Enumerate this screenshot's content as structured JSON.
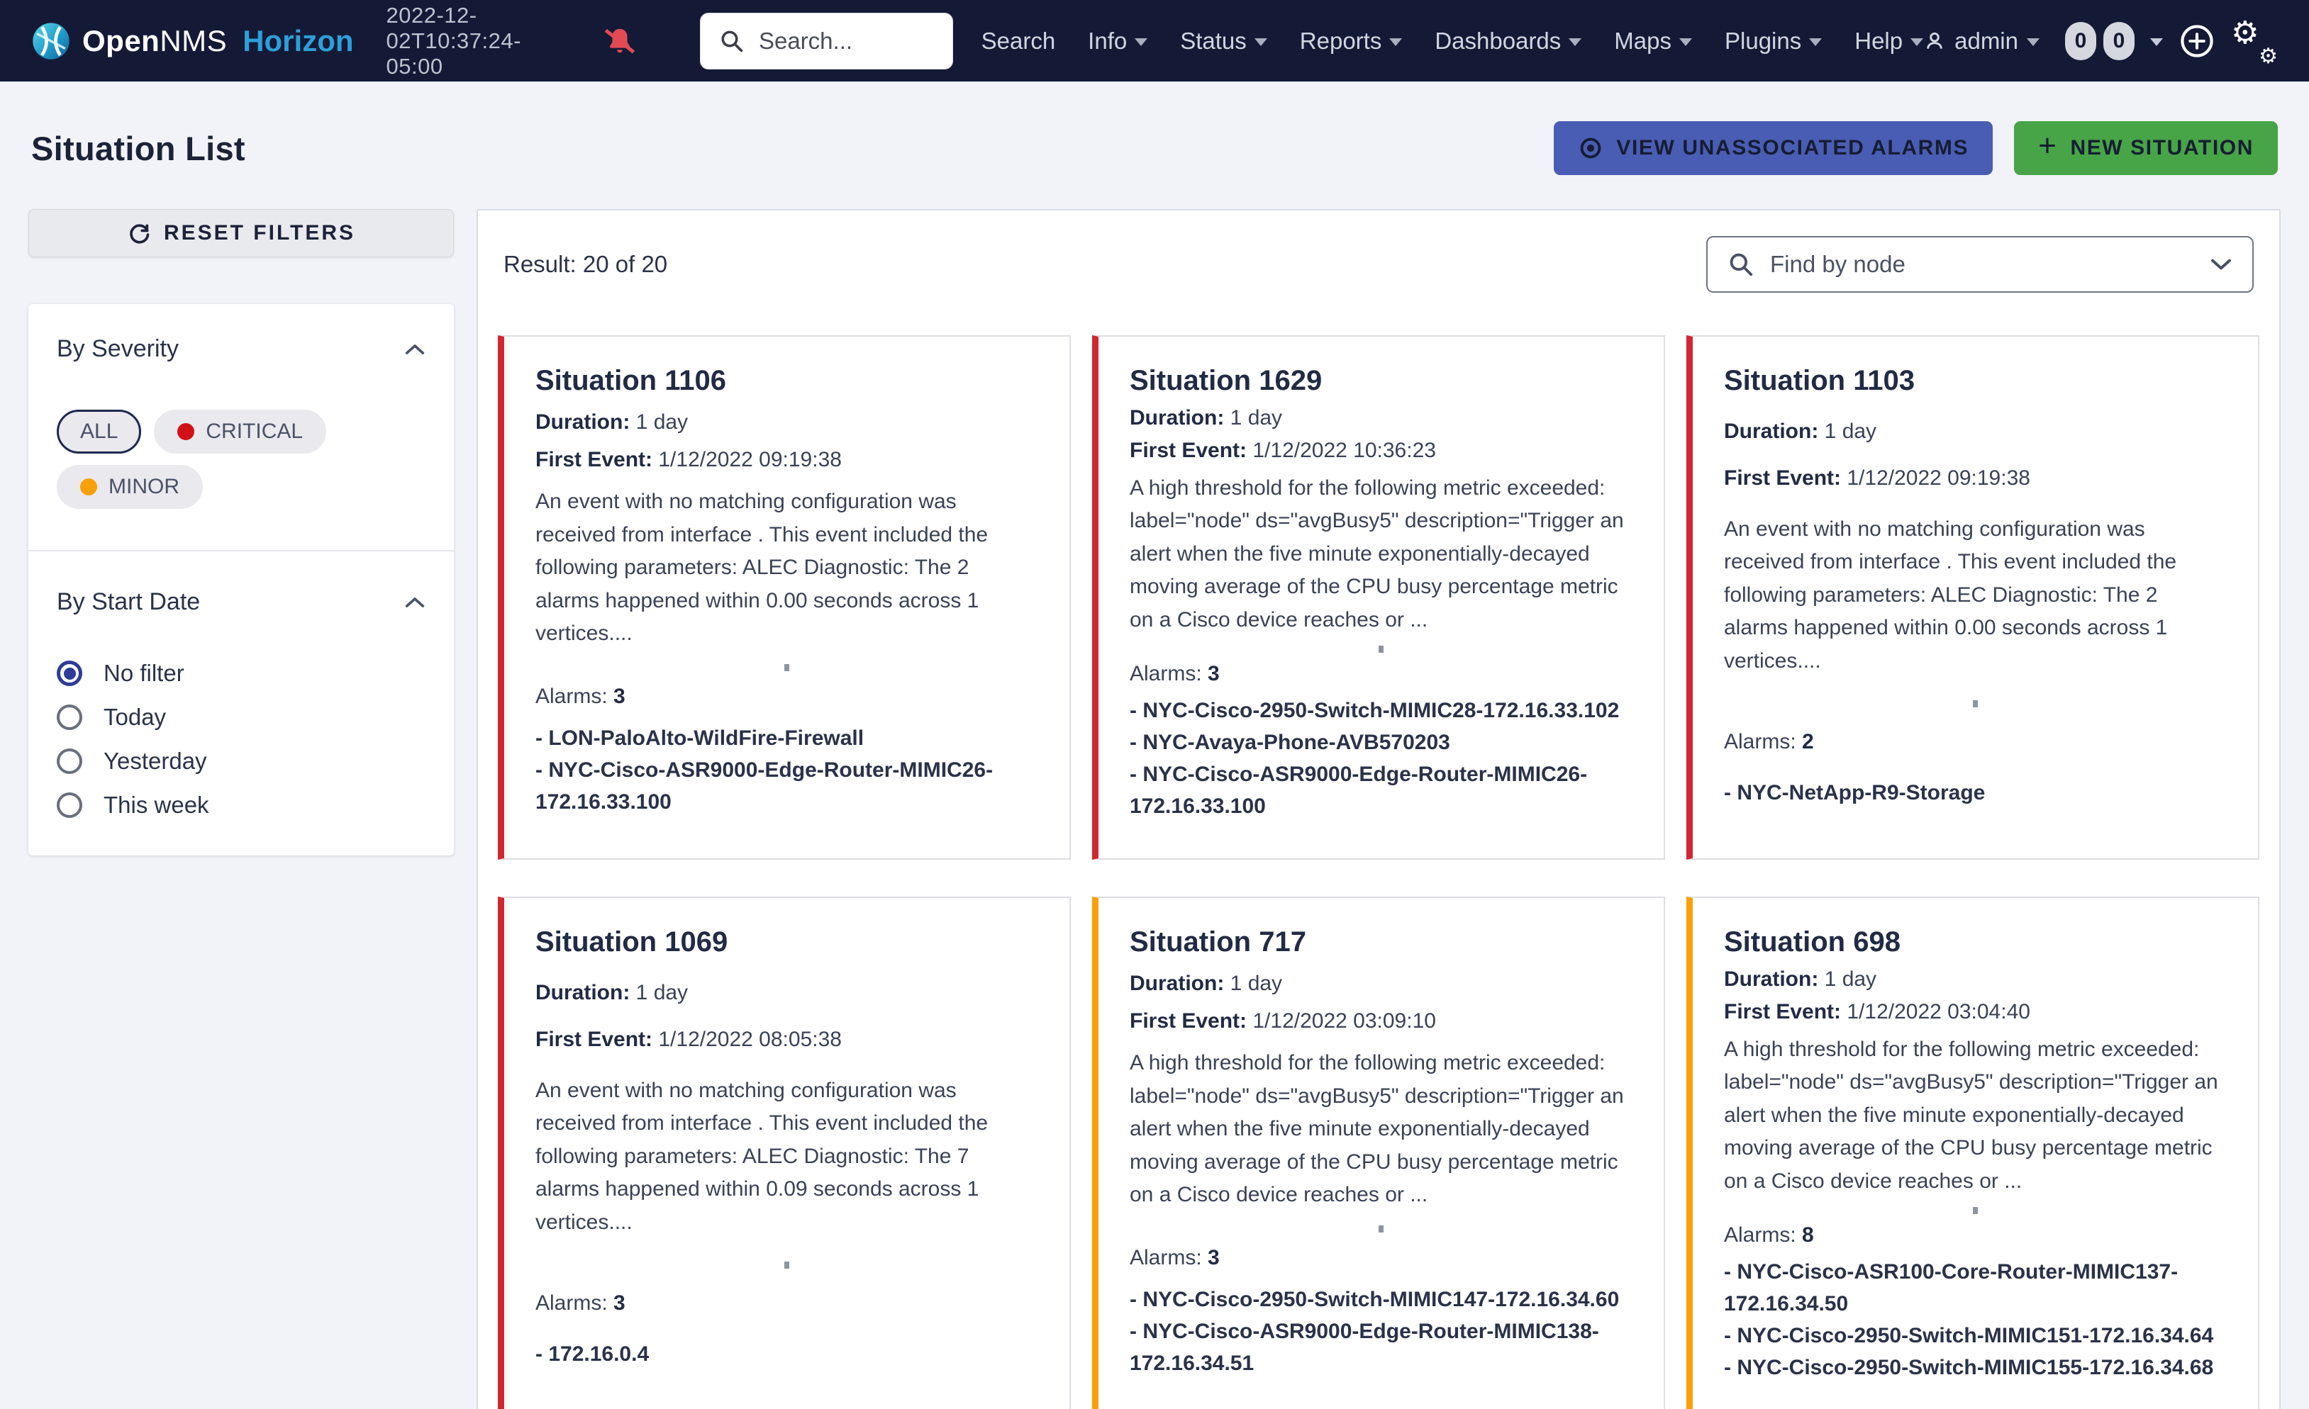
{
  "colors": {
    "critical": "#d22730",
    "minor": "#f9a009",
    "critical_dot": "#d01116",
    "minor_dot": "#f9a009",
    "view_button_bg": "#4a5db4",
    "new_button_bg": "#47a447",
    "bell": "#e24b55",
    "radio_selected": "#2e3b98"
  },
  "navbar": {
    "brand_name_bold": "Open",
    "brand_name_thin": "NMS",
    "brand_suffix": "Horizon",
    "timestamp": "2022-12-02T10:37:24-05:00",
    "search_placeholder": "Search...",
    "menu": [
      {
        "label": "Search",
        "caret": false
      },
      {
        "label": "Info",
        "caret": true
      },
      {
        "label": "Status",
        "caret": true
      },
      {
        "label": "Reports",
        "caret": true
      },
      {
        "label": "Dashboards",
        "caret": true
      },
      {
        "label": "Maps",
        "caret": true
      },
      {
        "label": "Plugins",
        "caret": true
      },
      {
        "label": "Help",
        "caret": true
      }
    ],
    "user_label": "admin",
    "badges": [
      "0",
      "0"
    ]
  },
  "header": {
    "title": "Situation List",
    "view_alarms_button": "VIEW UNASSOCIATED ALARMS",
    "new_situation_button": "NEW SITUATION"
  },
  "sidebar": {
    "reset_button": "RESET FILTERS",
    "severity_section": {
      "title": "By Severity",
      "pills": [
        {
          "label": "ALL",
          "selected": true,
          "dot": null
        },
        {
          "label": "CRITICAL",
          "selected": false,
          "dot": "#d01116"
        },
        {
          "label": "MINOR",
          "selected": false,
          "dot": "#f9a009"
        }
      ]
    },
    "date_section": {
      "title": "By Start Date",
      "options": [
        {
          "label": "No filter",
          "selected": true
        },
        {
          "label": "Today",
          "selected": false
        },
        {
          "label": "Yesterday",
          "selected": false
        },
        {
          "label": "This week",
          "selected": false
        }
      ]
    }
  },
  "main": {
    "result_text": "Result: 20 of 20",
    "node_filter_placeholder": "Find by node",
    "labels": {
      "duration": "Duration:",
      "first_event": "First Event:",
      "alarms": "Alarms:"
    },
    "situations": [
      {
        "title": "Situation 1106",
        "severity": "critical",
        "duration": "1 day",
        "first_event": "1/12/2022 09:19:38",
        "description": "An event with no matching configuration was received from interface . This event included the following parameters: ALEC Diagnostic: The 2 alarms happened within 0.00 seconds across 1 vertices....",
        "alarm_count": "3",
        "nodes": [
          "- LON-PaloAlto-WildFire-Firewall",
          "- NYC-Cisco-ASR9000-Edge-Router-MIMIC26-172.16.33.100"
        ]
      },
      {
        "title": "Situation 1629",
        "severity": "critical",
        "duration": "1 day",
        "first_event": "1/12/2022 10:36:23",
        "description": "A high threshold for the following metric exceeded: label=\"node\" ds=\"avgBusy5\" description=\"Trigger an alert when the five minute exponentially-decayed moving average of the CPU busy percentage metric on a Cisco device reaches or ...",
        "alarm_count": "3",
        "nodes": [
          "- NYC-Cisco-2950-Switch-MIMIC28-172.16.33.102",
          "- NYC-Avaya-Phone-AVB570203",
          "- NYC-Cisco-ASR9000-Edge-Router-MIMIC26-172.16.33.100"
        ]
      },
      {
        "title": "Situation 1103",
        "severity": "critical",
        "duration": "1 day",
        "first_event": "1/12/2022 09:19:38",
        "description": "An event with no matching configuration was received from interface . This event included the following parameters: ALEC Diagnostic: The 2 alarms happened within 0.00 seconds across 1 vertices....",
        "alarm_count": "2",
        "nodes": [
          "- NYC-NetApp-R9-Storage"
        ]
      },
      {
        "title": "Situation 1069",
        "severity": "critical",
        "duration": "1 day",
        "first_event": "1/12/2022 08:05:38",
        "description": "An event with no matching configuration was received from interface . This event included the following parameters: ALEC Diagnostic: The 7 alarms happened within 0.09 seconds across 1 vertices....",
        "alarm_count": "3",
        "nodes": [
          "- 172.16.0.4"
        ]
      },
      {
        "title": "Situation 717",
        "severity": "minor",
        "duration": "1 day",
        "first_event": "1/12/2022 03:09:10",
        "description": "A high threshold for the following metric exceeded: label=\"node\" ds=\"avgBusy5\" description=\"Trigger an alert when the five minute exponentially-decayed moving average of the CPU busy percentage metric on a Cisco device reaches or ...",
        "alarm_count": "3",
        "nodes": [
          "- NYC-Cisco-2950-Switch-MIMIC147-172.16.34.60",
          "- NYC-Cisco-ASR9000-Edge-Router-MIMIC138-172.16.34.51"
        ]
      },
      {
        "title": "Situation 698",
        "severity": "minor",
        "duration": "1 day",
        "first_event": "1/12/2022 03:04:40",
        "description": "A high threshold for the following metric exceeded: label=\"node\" ds=\"avgBusy5\" description=\"Trigger an alert when the five minute exponentially-decayed moving average of the CPU busy percentage metric on a Cisco device reaches or ...",
        "alarm_count": "8",
        "nodes": [
          "- NYC-Cisco-ASR100-Core-Router-MIMIC137-172.16.34.50",
          "- NYC-Cisco-2950-Switch-MIMIC151-172.16.34.64",
          "- NYC-Cisco-2950-Switch-MIMIC155-172.16.34.68"
        ]
      }
    ]
  }
}
